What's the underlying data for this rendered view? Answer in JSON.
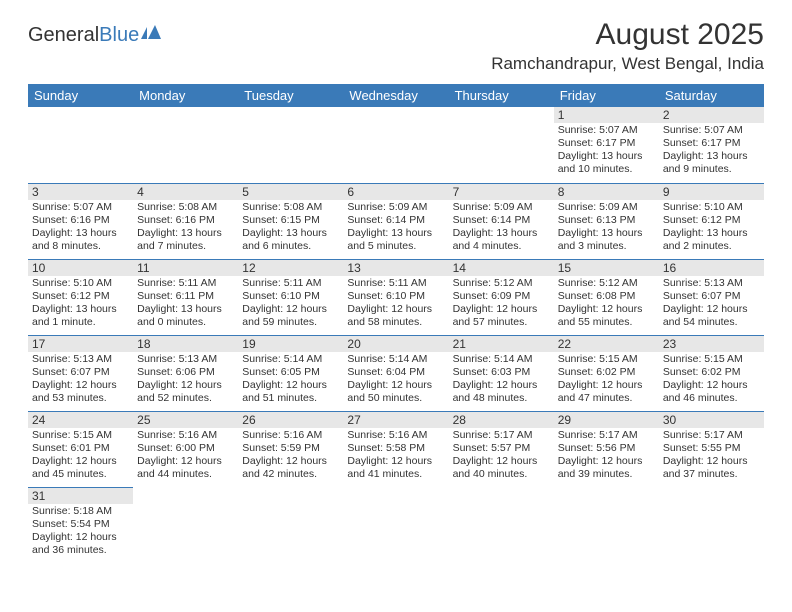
{
  "logo": {
    "text1": "General",
    "text2": "Blue"
  },
  "title": "August 2025",
  "location": "Ramchandrapur, West Bengal, India",
  "header_bg": "#3a7ab8",
  "daynum_bg": "#e7e7e7",
  "text_color": "#333333",
  "days_of_week": [
    "Sunday",
    "Monday",
    "Tuesday",
    "Wednesday",
    "Thursday",
    "Friday",
    "Saturday"
  ],
  "weeks": [
    [
      null,
      null,
      null,
      null,
      null,
      {
        "n": "1",
        "sunrise": "5:07 AM",
        "sunset": "6:17 PM",
        "daylight": "13 hours and 10 minutes."
      },
      {
        "n": "2",
        "sunrise": "5:07 AM",
        "sunset": "6:17 PM",
        "daylight": "13 hours and 9 minutes."
      }
    ],
    [
      {
        "n": "3",
        "sunrise": "5:07 AM",
        "sunset": "6:16 PM",
        "daylight": "13 hours and 8 minutes."
      },
      {
        "n": "4",
        "sunrise": "5:08 AM",
        "sunset": "6:16 PM",
        "daylight": "13 hours and 7 minutes."
      },
      {
        "n": "5",
        "sunrise": "5:08 AM",
        "sunset": "6:15 PM",
        "daylight": "13 hours and 6 minutes."
      },
      {
        "n": "6",
        "sunrise": "5:09 AM",
        "sunset": "6:14 PM",
        "daylight": "13 hours and 5 minutes."
      },
      {
        "n": "7",
        "sunrise": "5:09 AM",
        "sunset": "6:14 PM",
        "daylight": "13 hours and 4 minutes."
      },
      {
        "n": "8",
        "sunrise": "5:09 AM",
        "sunset": "6:13 PM",
        "daylight": "13 hours and 3 minutes."
      },
      {
        "n": "9",
        "sunrise": "5:10 AM",
        "sunset": "6:12 PM",
        "daylight": "13 hours and 2 minutes."
      }
    ],
    [
      {
        "n": "10",
        "sunrise": "5:10 AM",
        "sunset": "6:12 PM",
        "daylight": "13 hours and 1 minute."
      },
      {
        "n": "11",
        "sunrise": "5:11 AM",
        "sunset": "6:11 PM",
        "daylight": "13 hours and 0 minutes."
      },
      {
        "n": "12",
        "sunrise": "5:11 AM",
        "sunset": "6:10 PM",
        "daylight": "12 hours and 59 minutes."
      },
      {
        "n": "13",
        "sunrise": "5:11 AM",
        "sunset": "6:10 PM",
        "daylight": "12 hours and 58 minutes."
      },
      {
        "n": "14",
        "sunrise": "5:12 AM",
        "sunset": "6:09 PM",
        "daylight": "12 hours and 57 minutes."
      },
      {
        "n": "15",
        "sunrise": "5:12 AM",
        "sunset": "6:08 PM",
        "daylight": "12 hours and 55 minutes."
      },
      {
        "n": "16",
        "sunrise": "5:13 AM",
        "sunset": "6:07 PM",
        "daylight": "12 hours and 54 minutes."
      }
    ],
    [
      {
        "n": "17",
        "sunrise": "5:13 AM",
        "sunset": "6:07 PM",
        "daylight": "12 hours and 53 minutes."
      },
      {
        "n": "18",
        "sunrise": "5:13 AM",
        "sunset": "6:06 PM",
        "daylight": "12 hours and 52 minutes."
      },
      {
        "n": "19",
        "sunrise": "5:14 AM",
        "sunset": "6:05 PM",
        "daylight": "12 hours and 51 minutes."
      },
      {
        "n": "20",
        "sunrise": "5:14 AM",
        "sunset": "6:04 PM",
        "daylight": "12 hours and 50 minutes."
      },
      {
        "n": "21",
        "sunrise": "5:14 AM",
        "sunset": "6:03 PM",
        "daylight": "12 hours and 48 minutes."
      },
      {
        "n": "22",
        "sunrise": "5:15 AM",
        "sunset": "6:02 PM",
        "daylight": "12 hours and 47 minutes."
      },
      {
        "n": "23",
        "sunrise": "5:15 AM",
        "sunset": "6:02 PM",
        "daylight": "12 hours and 46 minutes."
      }
    ],
    [
      {
        "n": "24",
        "sunrise": "5:15 AM",
        "sunset": "6:01 PM",
        "daylight": "12 hours and 45 minutes."
      },
      {
        "n": "25",
        "sunrise": "5:16 AM",
        "sunset": "6:00 PM",
        "daylight": "12 hours and 44 minutes."
      },
      {
        "n": "26",
        "sunrise": "5:16 AM",
        "sunset": "5:59 PM",
        "daylight": "12 hours and 42 minutes."
      },
      {
        "n": "27",
        "sunrise": "5:16 AM",
        "sunset": "5:58 PM",
        "daylight": "12 hours and 41 minutes."
      },
      {
        "n": "28",
        "sunrise": "5:17 AM",
        "sunset": "5:57 PM",
        "daylight": "12 hours and 40 minutes."
      },
      {
        "n": "29",
        "sunrise": "5:17 AM",
        "sunset": "5:56 PM",
        "daylight": "12 hours and 39 minutes."
      },
      {
        "n": "30",
        "sunrise": "5:17 AM",
        "sunset": "5:55 PM",
        "daylight": "12 hours and 37 minutes."
      }
    ],
    [
      {
        "n": "31",
        "sunrise": "5:18 AM",
        "sunset": "5:54 PM",
        "daylight": "12 hours and 36 minutes."
      },
      null,
      null,
      null,
      null,
      null,
      null
    ]
  ],
  "labels": {
    "sunrise": "Sunrise:",
    "sunset": "Sunset:",
    "daylight": "Daylight:"
  }
}
